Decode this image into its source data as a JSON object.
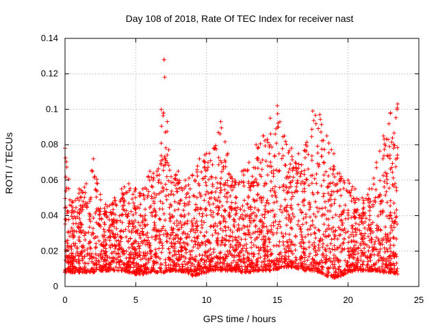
{
  "chart_data": {
    "type": "scatter",
    "title": "Day 108 of 2018, Rate Of TEC Index for receiver nast",
    "xlabel": "GPS time / hours",
    "ylabel": "ROTI / TECUs",
    "xlim": [
      0,
      25
    ],
    "ylim": [
      0,
      0.14
    ],
    "xticks": [
      0,
      5,
      10,
      15,
      20,
      25
    ],
    "yticks": [
      0,
      0.02,
      0.04,
      0.06,
      0.08,
      0.1,
      0.12,
      0.14
    ],
    "xtick_labels": [
      "0",
      "5",
      "10",
      "15",
      "20",
      "25"
    ],
    "ytick_labels": [
      "0",
      "0.02",
      "0.04",
      "0.06",
      "0.08",
      "0.1",
      "0.12",
      "0.14"
    ],
    "grid": true,
    "marker": "plus",
    "color": "#ff0000",
    "envelope": {
      "x": [
        0.0,
        0.5,
        1.0,
        1.5,
        2.0,
        2.5,
        3.0,
        3.5,
        4.0,
        4.5,
        5.0,
        5.5,
        6.0,
        6.5,
        7.0,
        7.5,
        8.0,
        8.5,
        9.0,
        9.5,
        10.0,
        10.5,
        11.0,
        11.5,
        12.0,
        12.5,
        13.0,
        13.5,
        14.0,
        14.5,
        15.0,
        15.5,
        16.0,
        16.5,
        17.0,
        17.5,
        18.0,
        18.5,
        19.0,
        19.5,
        20.0,
        20.5,
        21.0,
        21.5,
        22.0,
        22.5,
        23.0,
        23.5
      ],
      "ymin": [
        0.008,
        0.008,
        0.008,
        0.008,
        0.008,
        0.009,
        0.009,
        0.009,
        0.009,
        0.008,
        0.007,
        0.007,
        0.008,
        0.008,
        0.008,
        0.009,
        0.009,
        0.008,
        0.006,
        0.007,
        0.008,
        0.009,
        0.009,
        0.009,
        0.009,
        0.008,
        0.008,
        0.009,
        0.009,
        0.009,
        0.01,
        0.011,
        0.011,
        0.01,
        0.009,
        0.009,
        0.008,
        0.006,
        0.005,
        0.006,
        0.008,
        0.009,
        0.009,
        0.009,
        0.009,
        0.008,
        0.008,
        0.007
      ],
      "ymax": [
        0.078,
        0.048,
        0.055,
        0.058,
        0.072,
        0.052,
        0.045,
        0.05,
        0.055,
        0.058,
        0.055,
        0.055,
        0.065,
        0.065,
        0.128,
        0.062,
        0.065,
        0.06,
        0.063,
        0.072,
        0.075,
        0.078,
        0.093,
        0.075,
        0.06,
        0.065,
        0.07,
        0.08,
        0.085,
        0.095,
        0.102,
        0.085,
        0.078,
        0.075,
        0.08,
        0.099,
        0.097,
        0.085,
        0.075,
        0.062,
        0.06,
        0.055,
        0.05,
        0.055,
        0.07,
        0.085,
        0.098,
        0.103
      ]
    }
  }
}
